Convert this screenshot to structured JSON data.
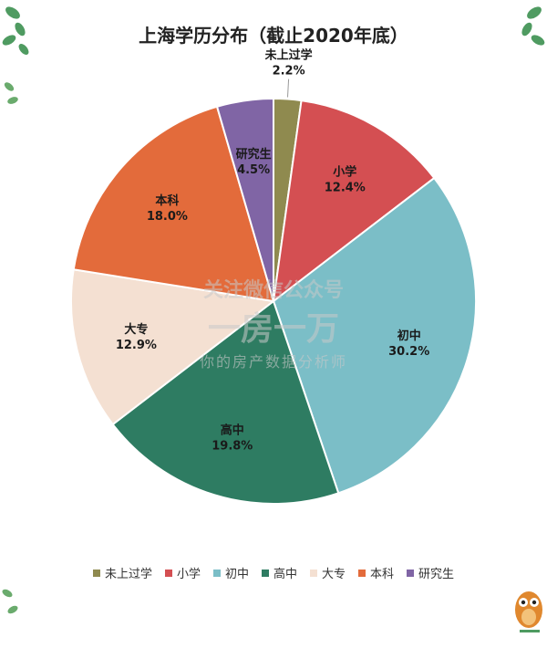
{
  "chart_data": {
    "type": "pie",
    "title": "上海学历分布（截止2020年底）",
    "categories": [
      "未上过学",
      "小学",
      "初中",
      "高中",
      "大专",
      "本科",
      "研究生"
    ],
    "values": [
      2.2,
      12.4,
      30.2,
      19.8,
      12.9,
      18.0,
      4.5
    ],
    "value_labels": [
      "2.2%",
      "12.4%",
      "30.2%",
      "19.8%",
      "12.9%",
      "18.0%",
      "4.5%"
    ],
    "colors": [
      "#8f8a4f",
      "#d44f52",
      "#7bbec7",
      "#2e7c62",
      "#f4e0d2",
      "#e36b3b",
      "#8065a5"
    ],
    "legend_position": "bottom"
  },
  "watermark": {
    "line1": "关注微信公众号",
    "line2": "一房一万",
    "line3": "你的房产数据分析师"
  }
}
